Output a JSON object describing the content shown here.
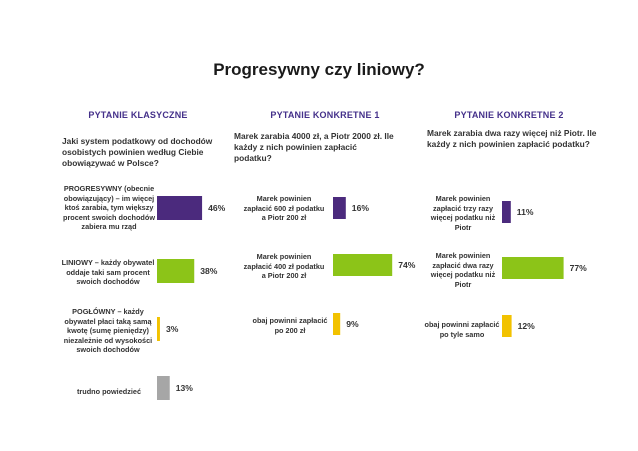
{
  "title": "Progresywny czy liniowy?",
  "colors": {
    "purple": "#4b2a7d",
    "green": "#8cc418",
    "yellow": "#f2c200",
    "gray": "#a6a6a6",
    "header": "#44308a"
  },
  "chart_data": [
    {
      "type": "bar",
      "header": "PYTANIE KLASYCZNE",
      "question": "Jaki system podatkowy od dochodów osobistych powinien według Ciebie obowiązywać w Polsce?",
      "categories": [
        "PROGRESYWNY (obecnie obowiązujący) – im więcej ktoś zarabia, tym większy procent swoich dochodów zabiera mu rząd",
        "LINIOWY – każdy obywatel oddaje taki sam procent swoich dochodów",
        "POGŁÓWNY – każdy obywatel płaci taką samą kwotę (sumę pieniędzy) niezależnie od wysokości swoich dochodów",
        "trudno powiedzieć"
      ],
      "values": [
        46,
        38,
        3,
        13
      ],
      "value_labels": [
        "46%",
        "38%",
        "3%",
        "13%"
      ],
      "bar_colors": [
        "#4b2a7d",
        "#8cc418",
        "#f2c200",
        "#a6a6a6"
      ]
    },
    {
      "type": "bar",
      "header": "PYTANIE KONKRETNE 1",
      "question": "Marek zarabia 4000 zł, a Piotr 2000 zł. Ile każdy z nich powinien zapłacić podatku?",
      "categories": [
        "Marek powinien zapłacić 600 zł podatku a Piotr 200 zł",
        "Marek powinien zapłacić 400 zł podatku a Piotr 200 zł",
        "obaj powinni zapłacić po 200 zł"
      ],
      "values": [
        16,
        74,
        9
      ],
      "value_labels": [
        "16%",
        "74%",
        "9%"
      ],
      "bar_colors": [
        "#4b2a7d",
        "#8cc418",
        "#f2c200"
      ]
    },
    {
      "type": "bar",
      "header": "PYTANIE KONKRETNE 2",
      "question": "Marek zarabia dwa razy więcej niż Piotr. Ile każdy z nich powinien zapłacić podatku?",
      "categories": [
        "Marek powinien zapłacić trzy razy więcej podatku niż Piotr",
        "Marek powinien zapłacić dwa razy więcej podatku niż Piotr",
        "obaj powinni zapłacić po tyle samo"
      ],
      "values": [
        11,
        77,
        12
      ],
      "value_labels": [
        "11%",
        "77%",
        "12%"
      ],
      "bar_colors": [
        "#4b2a7d",
        "#8cc418",
        "#f2c200"
      ]
    }
  ]
}
